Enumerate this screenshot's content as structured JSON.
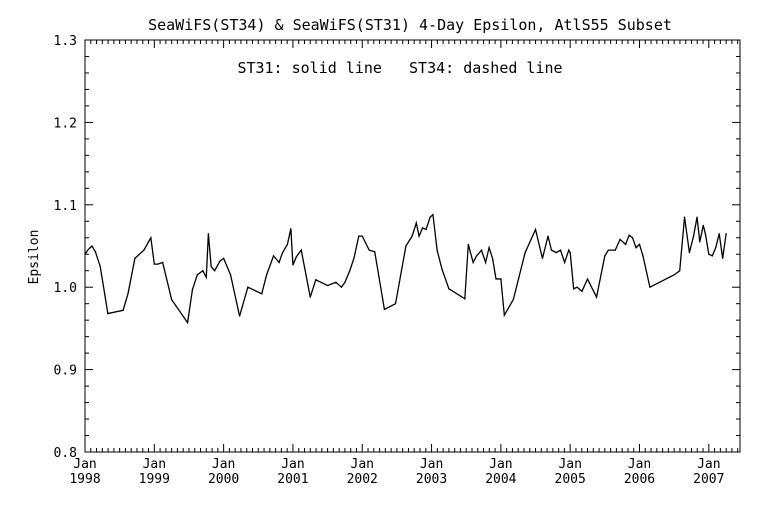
{
  "title": "SeaWiFS(ST34) & SeaWiFS(ST31) 4-Day Epsilon, AtlS55 Subset",
  "annotation": "ST31: solid line   ST34: dashed line",
  "colors": {
    "line": "#000000",
    "background": "#ffffff"
  },
  "chart_data": {
    "type": "line",
    "title": "SeaWiFS(ST34) & SeaWiFS(ST31) 4-Day Epsilon, AtlS55 Subset",
    "xlabel": "",
    "ylabel": "Epsilon",
    "xlim": [
      1998.0,
      2007.45
    ],
    "ylim": [
      0.8,
      1.3
    ],
    "y_ticks": [
      "0.8",
      "0.9",
      "1.0",
      "1.1",
      "1.2",
      "1.3"
    ],
    "x_ticks": [
      {
        "month": "Jan",
        "year": "1998",
        "x": 1998
      },
      {
        "month": "Jan",
        "year": "1999",
        "x": 1999
      },
      {
        "month": "Jan",
        "year": "2000",
        "x": 2000
      },
      {
        "month": "Jan",
        "year": "2001",
        "x": 2001
      },
      {
        "month": "Jan",
        "year": "2002",
        "x": 2002
      },
      {
        "month": "Jan",
        "year": "2003",
        "x": 2003
      },
      {
        "month": "Jan",
        "year": "2004",
        "x": 2004
      },
      {
        "month": "Jan",
        "year": "2005",
        "x": 2005
      },
      {
        "month": "Jan",
        "year": "2006",
        "x": 2006
      },
      {
        "month": "Jan",
        "year": "2007",
        "x": 2007
      }
    ],
    "grid": false,
    "series": [
      {
        "name": "ST31",
        "style": "solid",
        "x": [
          1998.0,
          1998.05,
          1998.1,
          1998.15,
          1998.22,
          1998.33,
          1998.55,
          1998.62,
          1998.72,
          1998.85,
          1998.95,
          1999.0,
          1999.05,
          1999.12,
          1999.25,
          1999.48,
          1999.55,
          1999.62,
          1999.7,
          1999.75,
          1999.78,
          1999.82,
          1999.87,
          1999.95,
          2000.0,
          2000.1,
          2000.23,
          2000.35,
          2000.55,
          2000.62,
          2000.72,
          2000.8,
          2000.85,
          2000.92,
          2000.97,
          2001.0,
          2001.05,
          2001.12,
          2001.25,
          2001.33,
          2001.5,
          2001.62,
          2001.7,
          2001.75,
          2001.82,
          2001.88,
          2001.95,
          2002.0,
          2002.1,
          2002.18,
          2002.32,
          2002.48,
          2002.63,
          2002.72,
          2002.78,
          2002.82,
          2002.87,
          2002.92,
          2002.98,
          2003.02,
          2003.08,
          2003.15,
          2003.25,
          2003.48,
          2003.53,
          2003.6,
          2003.65,
          2003.72,
          2003.78,
          2003.83,
          2003.88,
          2003.93,
          2004.0,
          2004.05,
          2004.18,
          2004.35,
          2004.5,
          2004.6,
          2004.68,
          2004.73,
          2004.8,
          2004.86,
          2004.92,
          2004.98,
          2005.0,
          2005.05,
          2005.1,
          2005.17,
          2005.25,
          2005.38,
          2005.5,
          2005.55,
          2005.65,
          2005.72,
          2005.8,
          2005.85,
          2005.9,
          2005.95,
          2006.0,
          2006.05,
          2006.15,
          2006.5,
          2006.58,
          2006.65,
          2006.72,
          2006.78,
          2006.83,
          2006.87,
          2006.92,
          2006.95,
          2007.0,
          2007.05,
          2007.1,
          2007.15,
          2007.2,
          2007.25
        ]
      }
    ],
    "values": [
      1.04,
      1.046,
      1.05,
      1.043,
      1.025,
      0.968,
      0.972,
      0.992,
      1.035,
      1.045,
      1.06,
      1.028,
      1.028,
      1.03,
      0.985,
      0.957,
      0.997,
      1.015,
      1.02,
      1.012,
      1.065,
      1.025,
      1.02,
      1.032,
      1.035,
      1.015,
      0.965,
      1.0,
      0.992,
      1.015,
      1.038,
      1.03,
      1.042,
      1.052,
      1.071,
      1.027,
      1.037,
      1.045,
      0.988,
      1.009,
      1.002,
      1.006,
      1.0,
      1.006,
      1.02,
      1.035,
      1.062,
      1.062,
      1.045,
      1.043,
      0.973,
      0.98,
      1.05,
      1.062,
      1.078,
      1.062,
      1.072,
      1.07,
      1.085,
      1.088,
      1.045,
      1.022,
      0.998,
      0.986,
      1.052,
      1.03,
      1.038,
      1.045,
      1.03,
      1.048,
      1.035,
      1.01,
      1.01,
      0.966,
      0.985,
      1.042,
      1.07,
      1.035,
      1.062,
      1.045,
      1.042,
      1.045,
      1.03,
      1.045,
      1.042,
      0.998,
      1.0,
      0.995,
      1.01,
      0.988,
      1.038,
      1.045,
      1.045,
      1.058,
      1.052,
      1.063,
      1.06,
      1.048,
      1.052,
      1.038,
      1.0,
      1.015,
      1.02,
      1.085,
      1.042,
      1.062,
      1.085,
      1.055,
      1.075,
      1.065,
      1.04,
      1.038,
      1.048,
      1.065,
      1.035,
      1.065
    ]
  }
}
